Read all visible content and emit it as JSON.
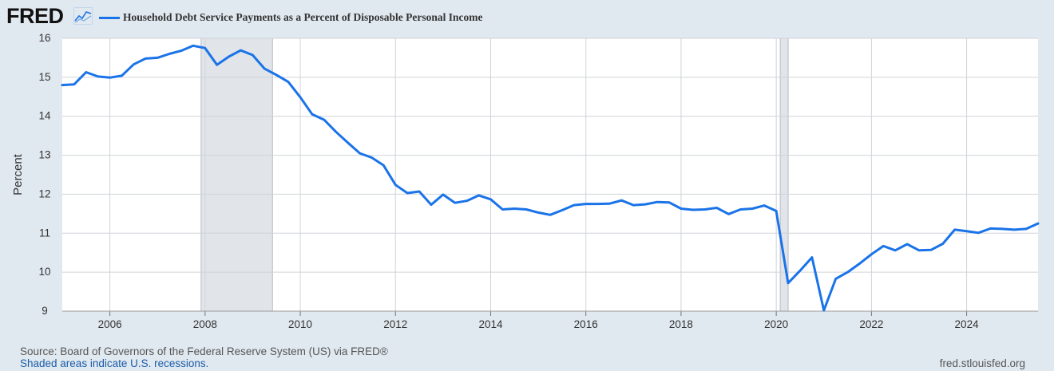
{
  "header": {
    "logo_text": "FRED",
    "logo_icon": "line-chart-icon"
  },
  "colors": {
    "series": "#1a73e8",
    "recession": "#e1e5ea",
    "background": "#e1e9f0",
    "plot_bg": "#ffffff",
    "grid": "#d0d4d8"
  },
  "footer": {
    "source": "Source: Board of Governors of the Federal Reserve System (US) via FRED®",
    "note": "Shaded areas indicate U.S. recessions.",
    "url": "fred.stlouisfed.org"
  },
  "chart_data": {
    "type": "line",
    "title": "",
    "xlabel": "",
    "ylabel": "Percent",
    "ylim": [
      9,
      16
    ],
    "xlim": [
      "2005-01-01",
      "2025-07-01"
    ],
    "grid": true,
    "legend_position": "top-left",
    "yticks": [
      9,
      10,
      11,
      12,
      13,
      14,
      15,
      16
    ],
    "xticks": [
      "2006",
      "2008",
      "2010",
      "2012",
      "2014",
      "2016",
      "2018",
      "2020",
      "2022",
      "2024"
    ],
    "recessions": [
      {
        "start": "2007-12-01",
        "end": "2009-06-01"
      },
      {
        "start": "2020-02-01",
        "end": "2020-04-01"
      }
    ],
    "series": [
      {
        "name": "Household Debt Service Payments as a Percent of Disposable Personal Income",
        "frequency": "quarterly",
        "start": "2005-01-01",
        "values": [
          14.8,
          14.82,
          15.13,
          15.02,
          14.99,
          15.04,
          15.33,
          15.48,
          15.5,
          15.6,
          15.68,
          15.81,
          15.75,
          15.32,
          15.53,
          15.69,
          15.57,
          15.22,
          15.06,
          14.88,
          14.49,
          14.05,
          13.91,
          13.6,
          13.32,
          13.05,
          12.94,
          12.74,
          12.24,
          12.03,
          12.07,
          11.73,
          11.99,
          11.78,
          11.83,
          11.97,
          11.87,
          11.61,
          11.63,
          11.61,
          11.53,
          11.47,
          11.59,
          11.72,
          11.75,
          11.75,
          11.76,
          11.84,
          11.72,
          11.74,
          11.8,
          11.79,
          11.63,
          11.6,
          11.61,
          11.65,
          11.49,
          11.61,
          11.63,
          11.71,
          11.57,
          9.72,
          10.04,
          10.38,
          9.02,
          9.83,
          10.0,
          10.22,
          10.46,
          10.67,
          10.56,
          10.72,
          10.56,
          10.57,
          10.73,
          11.09,
          11.05,
          11.01,
          11.12,
          11.11,
          11.09,
          11.11,
          11.25
        ]
      }
    ]
  }
}
